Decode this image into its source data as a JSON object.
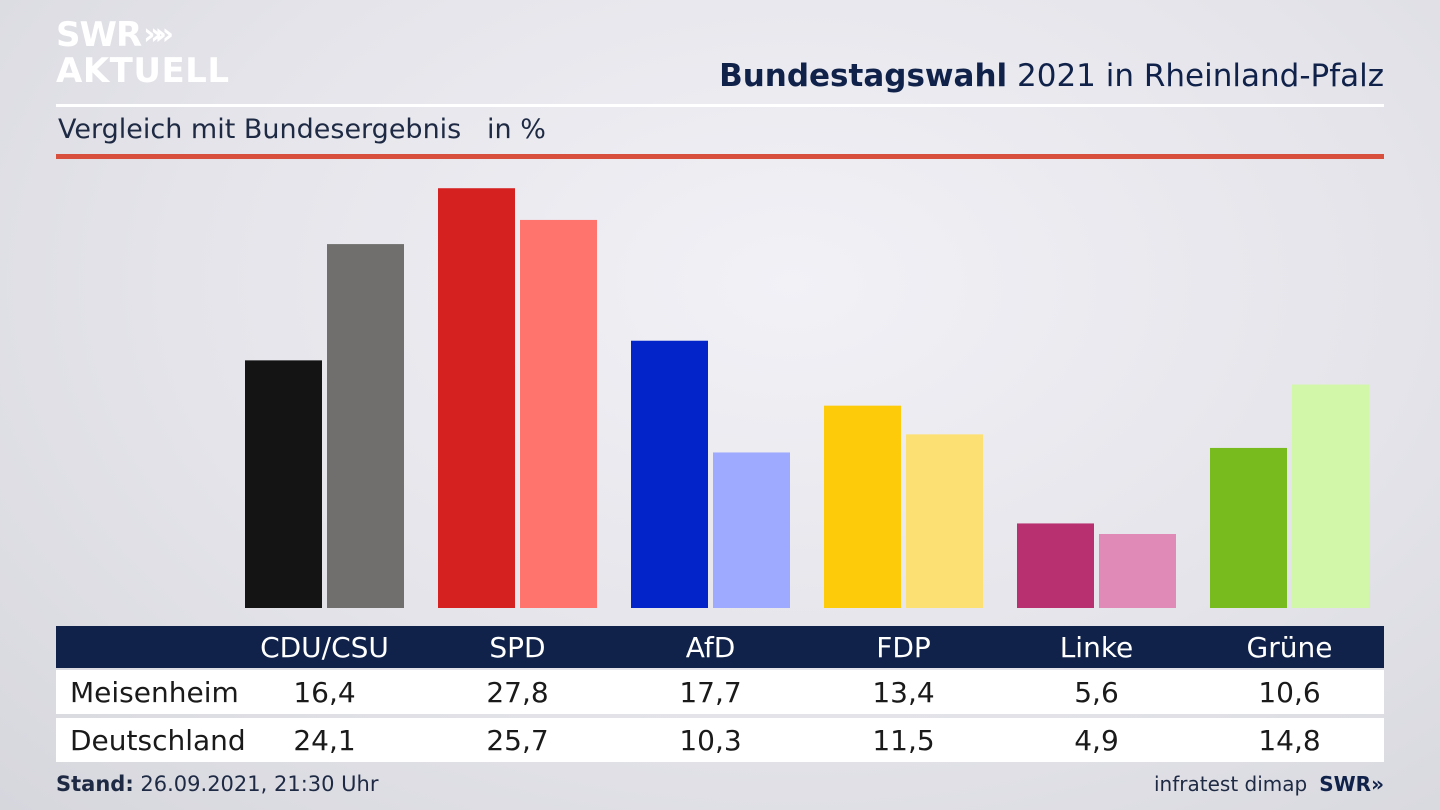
{
  "logo": {
    "line1": "SWR",
    "line2": "AKTUELL",
    "arrows": "»"
  },
  "header": {
    "title_bold": "Bundestagswahl",
    "title_rest": " 2021 in Rheinland-Pfalz"
  },
  "subtitle": "Vergleich mit Bundesergebnis   in %",
  "chart_data": {
    "type": "bar",
    "categories": [
      "CDU/CSU",
      "SPD",
      "AfD",
      "FDP",
      "Linke",
      "Grüne"
    ],
    "series": [
      {
        "name": "Meisenheim",
        "values": [
          16.4,
          27.8,
          17.7,
          13.4,
          5.6,
          10.6
        ]
      },
      {
        "name": "Deutschland",
        "values": [
          24.1,
          25.7,
          10.3,
          11.5,
          4.9,
          14.8
        ]
      }
    ],
    "colors": {
      "Meisenheim": [
        "#141414",
        "#d62121",
        "#0224c8",
        "#fdcb0a",
        "#b8306f",
        "#78bb1e"
      ],
      "Deutschland": [
        "#706f6e",
        "#ff756d",
        "#9eaaff",
        "#fde074",
        "#e08ab8",
        "#d3f7a8"
      ]
    },
    "ylim": [
      0,
      30
    ],
    "grid": false
  },
  "table": {
    "rows": [
      {
        "label": "Meisenheim",
        "values": [
          "16,4",
          "27,8",
          "17,7",
          "13,4",
          "5,6",
          "10,6"
        ]
      },
      {
        "label": "Deutschland",
        "values": [
          "24,1",
          "25,7",
          "10,3",
          "11,5",
          "4,9",
          "14,8"
        ]
      }
    ]
  },
  "footer": {
    "stand_label": "Stand:",
    "stand_value": " 26.09.2021, 21:30 Uhr",
    "source": "infratest dimap",
    "source_logo": "SWR»"
  }
}
